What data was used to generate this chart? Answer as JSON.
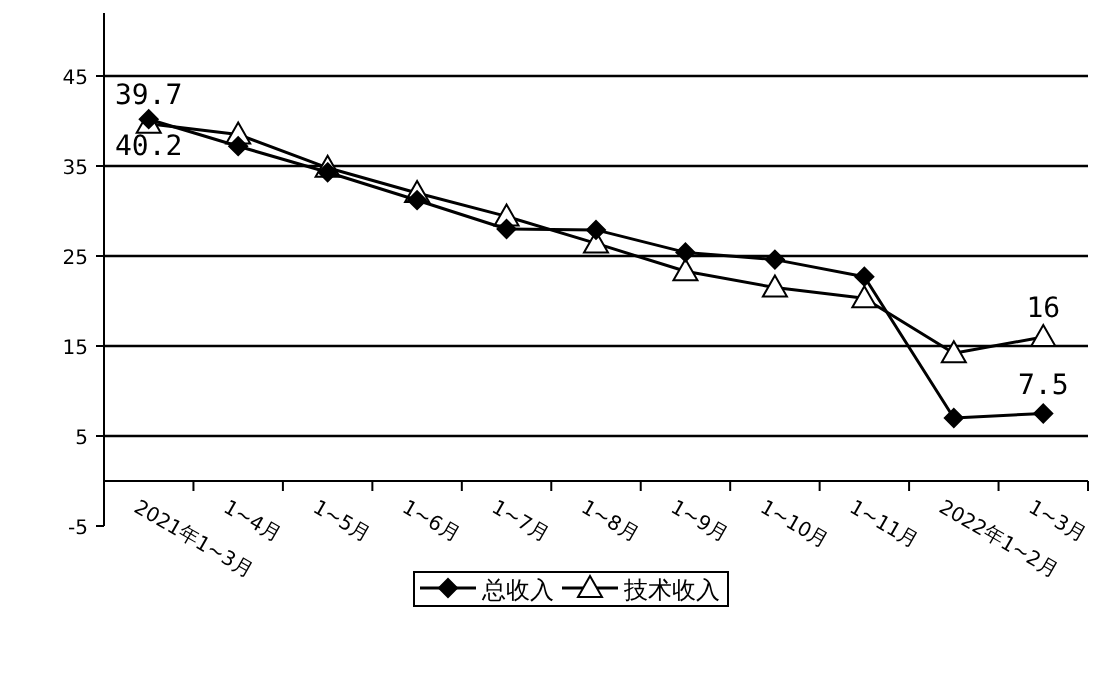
{
  "chart_data": {
    "type": "line",
    "categories": [
      "2021年1~3月",
      "1~4月",
      "1~5月",
      "1~6月",
      "1~7月",
      "1~8月",
      "1~9月",
      "1~10月",
      "1~11月",
      "2022年1~2月",
      "1~3月"
    ],
    "series": [
      {
        "name": "总收入",
        "color": "#000000",
        "marker": "diamond",
        "values": [
          40.2,
          37.2,
          34.3,
          31.2,
          28.0,
          27.9,
          25.4,
          24.6,
          22.7,
          7.0,
          7.5
        ],
        "value_labels": [
          "40.2",
          null,
          null,
          null,
          null,
          null,
          null,
          null,
          null,
          null,
          "7.5"
        ]
      },
      {
        "name": "技术收入",
        "color": "#000000",
        "marker": "triangle",
        "values": [
          39.7,
          38.5,
          34.8,
          32.0,
          29.4,
          26.4,
          23.3,
          21.5,
          20.3,
          14.2,
          16
        ],
        "value_labels": [
          "39.7",
          null,
          null,
          null,
          null,
          null,
          null,
          null,
          null,
          null,
          "16"
        ]
      }
    ],
    "ylim": [
      -5,
      52
    ],
    "yticks": [
      -5,
      5,
      15,
      25,
      35,
      45
    ],
    "grid": "y",
    "legend": "bottom"
  }
}
